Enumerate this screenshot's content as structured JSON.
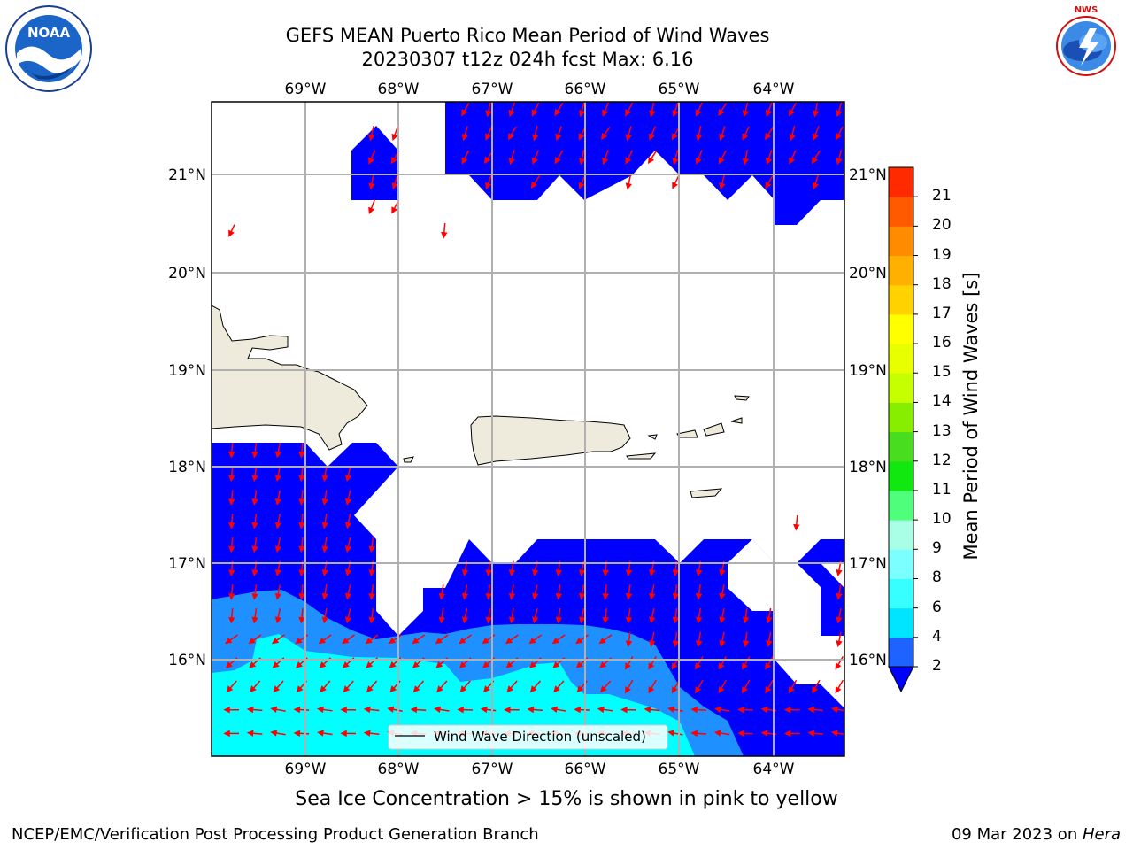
{
  "header": {
    "title_line1": "GEFS MEAN Puerto Rico Mean Period of Wind Waves",
    "title_line2": "20230307 t12z 024h fcst   Max: 6.16"
  },
  "logos": {
    "left": "noaa-logo",
    "right": "national-weather-service-logo",
    "right_text": "NATIONAL WEATHER SERVICE"
  },
  "map": {
    "lon_labels": [
      "69°W",
      "68°W",
      "67°W",
      "66°W",
      "65°W",
      "64°W"
    ],
    "lat_labels": [
      "21°N",
      "20°N",
      "19°N",
      "18°N",
      "17°N",
      "16°N"
    ],
    "legend_label": "Wind Wave Direction (unscaled)",
    "colors": {
      "land": "#efebdc",
      "band_2_4": "#0000ff",
      "band_4_6": "#1e90ff",
      "band_6_8": "#00ffff",
      "arrow": "#ff0000"
    }
  },
  "colorbar": {
    "title": "Mean Period of Wind Waves [s]",
    "ticks": [
      "2",
      "4",
      "6",
      "8",
      "9",
      "10",
      "11",
      "12",
      "13",
      "14",
      "15",
      "16",
      "17",
      "18",
      "19",
      "20",
      "21"
    ],
    "colors": [
      "#1e62ff",
      "#00e5ff",
      "#38ffff",
      "#7cffff",
      "#a8ffe6",
      "#4fff7c",
      "#10e810",
      "#49dd20",
      "#88ee00",
      "#c6ff00",
      "#e8ff00",
      "#ffff00",
      "#ffd200",
      "#ffb000",
      "#ff8c00",
      "#ff5a00",
      "#ff2a00",
      "#ff0000"
    ]
  },
  "subnote": "Sea Ice Concentration > 15% is shown in pink to yellow",
  "footer": {
    "left": "NCEP/EMC/Verification Post Processing Product Generation Branch",
    "right_prefix": "09 Mar 2023 on ",
    "right_host": "Hera"
  }
}
